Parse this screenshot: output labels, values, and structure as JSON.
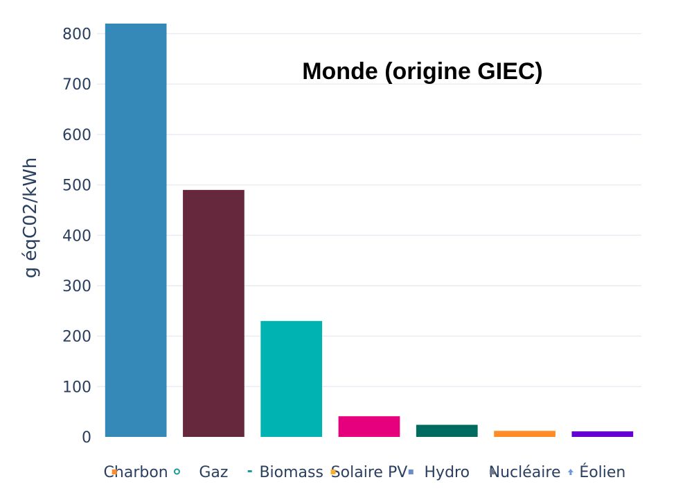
{
  "chart_data": {
    "type": "bar",
    "title": "Monde (origine GIEC)",
    "xlabel": "",
    "ylabel": "g éqC02/kWh",
    "ylim": [
      0,
      820
    ],
    "yticks": [
      0,
      100,
      200,
      300,
      400,
      500,
      600,
      700,
      800
    ],
    "grid": true,
    "categories": [
      "Charbon",
      "Gaz",
      "Biomass",
      "Solaire PV",
      "Hydro",
      "Nucléaire",
      "Éolien"
    ],
    "values": [
      820,
      490,
      230,
      41,
      24,
      12,
      11
    ],
    "colors": [
      "#3589b8",
      "#65283c",
      "#00b3b3",
      "#e6007e",
      "#006b5e",
      "#ff8c28",
      "#6400d2"
    ],
    "label_icons": [
      {
        "name": "orange-square-icon",
        "color": "#ff8c28"
      },
      {
        "name": "teal-circle-icon",
        "color": "#1a9a9a"
      },
      {
        "name": "teal-dot-icon",
        "color": "#1a9a9a"
      },
      {
        "name": "yellow-square-icon",
        "color": "#f3b033"
      },
      {
        "name": "blue-square-icon",
        "color": "#6a8cc8"
      },
      {
        "name": "gray-square-icon",
        "color": "#6c7a8c"
      },
      {
        "name": "blue-arrow-icon",
        "color": "#6a9ad8"
      }
    ]
  }
}
